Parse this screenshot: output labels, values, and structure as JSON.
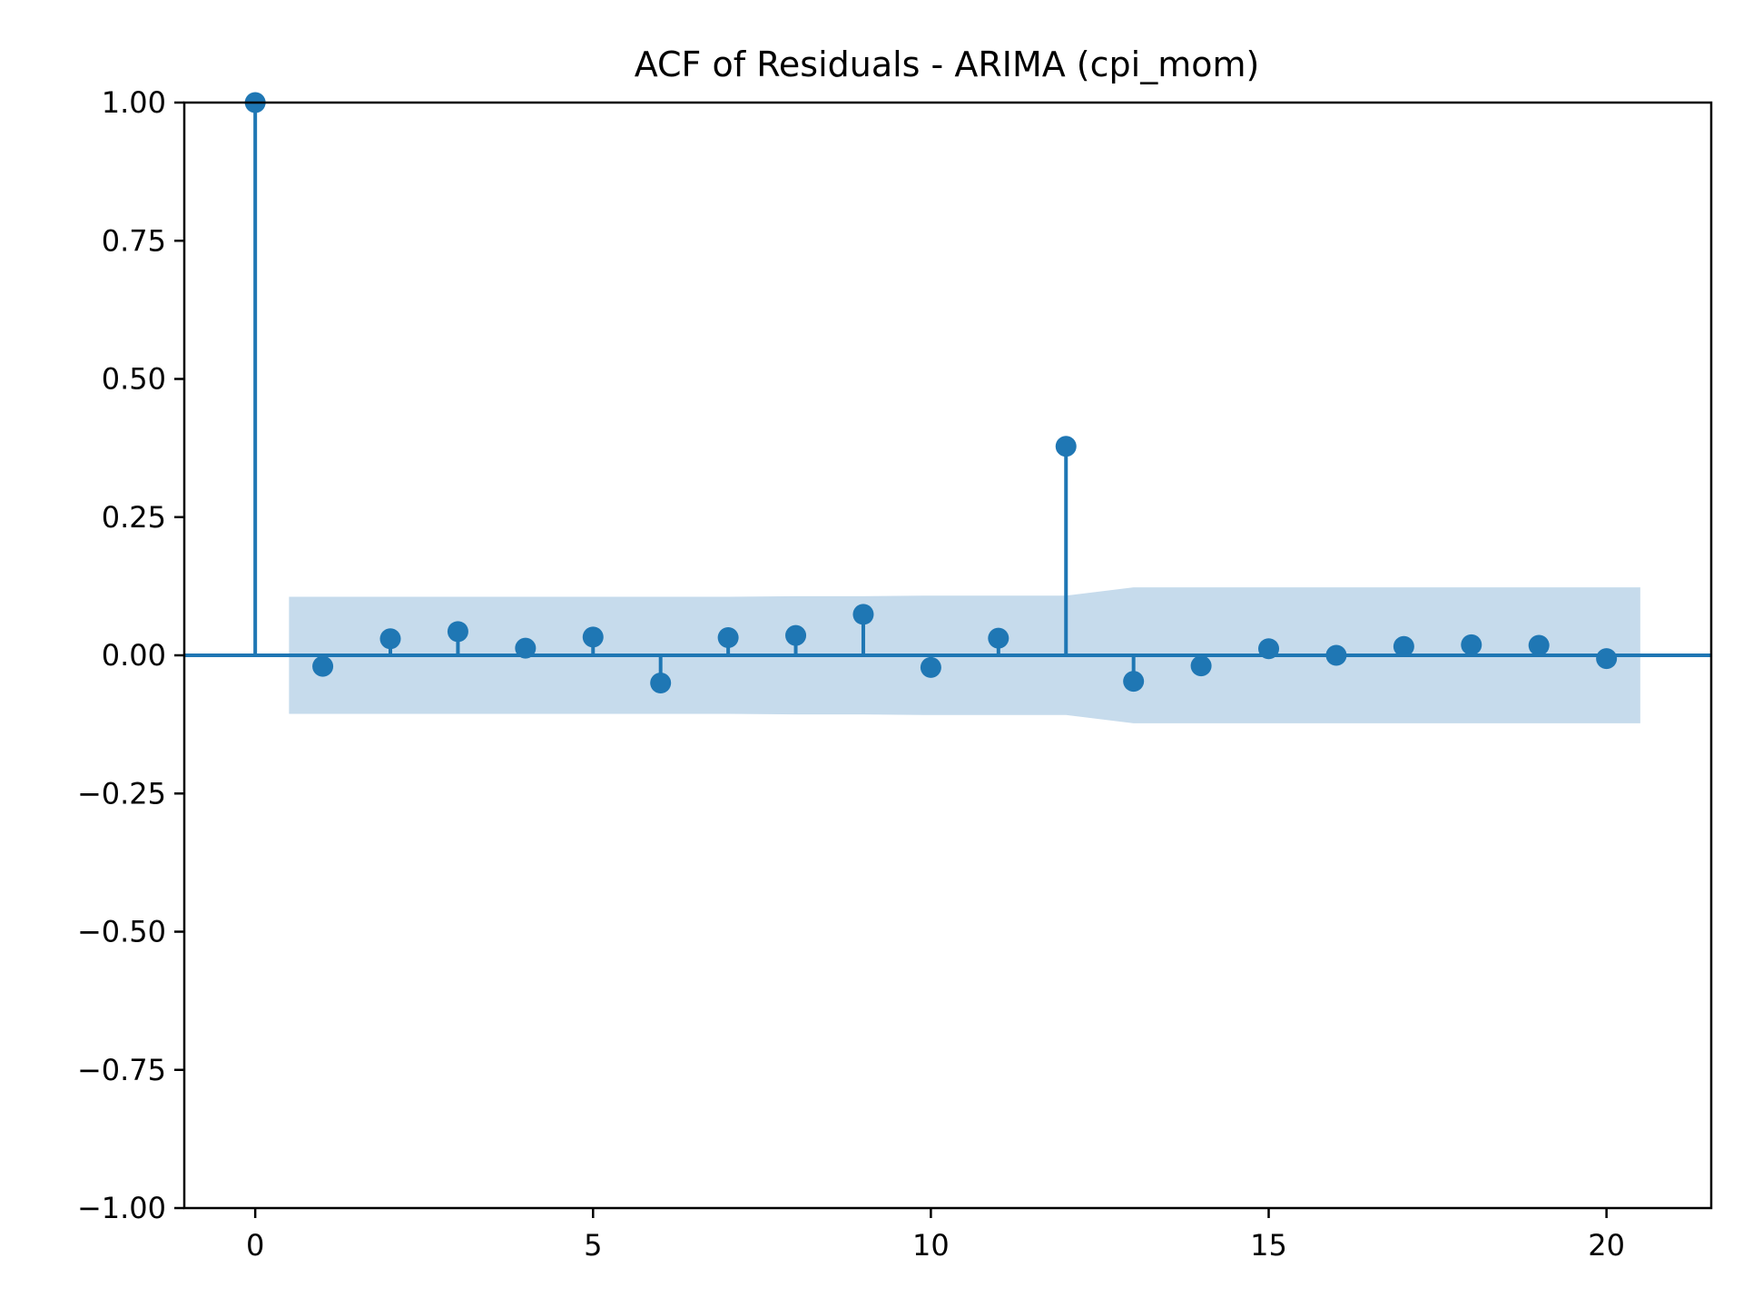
{
  "chart_data": {
    "type": "stem",
    "title": "ACF of Residuals - ARIMA (cpi_mom)",
    "xlabel": "",
    "ylabel": "",
    "xlim": [
      -1.05,
      21.55
    ],
    "ylim": [
      -1.0,
      1.0
    ],
    "x_ticks": [
      0,
      5,
      10,
      15,
      20
    ],
    "x_tick_labels": [
      "0",
      "5",
      "10",
      "15",
      "20"
    ],
    "y_ticks": [
      1.0,
      0.75,
      0.5,
      0.25,
      0.0,
      -0.25,
      -0.5,
      -0.75,
      -1.0
    ],
    "y_tick_labels": [
      "1.00",
      "0.75",
      "0.50",
      "0.25",
      "0.00",
      "−0.25",
      "−0.50",
      "−0.75",
      "−1.00"
    ],
    "grid": false,
    "colors": {
      "series": "#1f77b4",
      "confidence_band": "#c6dbec",
      "axes": "#000000"
    },
    "acf": {
      "lags": [
        0,
        1,
        2,
        3,
        4,
        5,
        6,
        7,
        8,
        9,
        10,
        11,
        12,
        13,
        14,
        15,
        16,
        17,
        18,
        19,
        20
      ],
      "values": [
        1.0,
        -0.02,
        0.03,
        0.043,
        0.013,
        0.033,
        -0.05,
        0.032,
        0.036,
        0.074,
        -0.022,
        0.031,
        0.378,
        -0.047,
        -0.019,
        0.012,
        0.0,
        0.016,
        0.019,
        0.018,
        -0.006
      ]
    },
    "confidence_band": {
      "lags": [
        0.5,
        1,
        2,
        3,
        4,
        5,
        6,
        7,
        8,
        9,
        10,
        11,
        12,
        13,
        14,
        15,
        16,
        17,
        18,
        19,
        20,
        20.5
      ],
      "upper": [
        0.106,
        0.106,
        0.106,
        0.106,
        0.106,
        0.106,
        0.106,
        0.106,
        0.107,
        0.107,
        0.108,
        0.108,
        0.108,
        0.123,
        0.123,
        0.123,
        0.123,
        0.123,
        0.123,
        0.123,
        0.123,
        0.123
      ]
    }
  }
}
